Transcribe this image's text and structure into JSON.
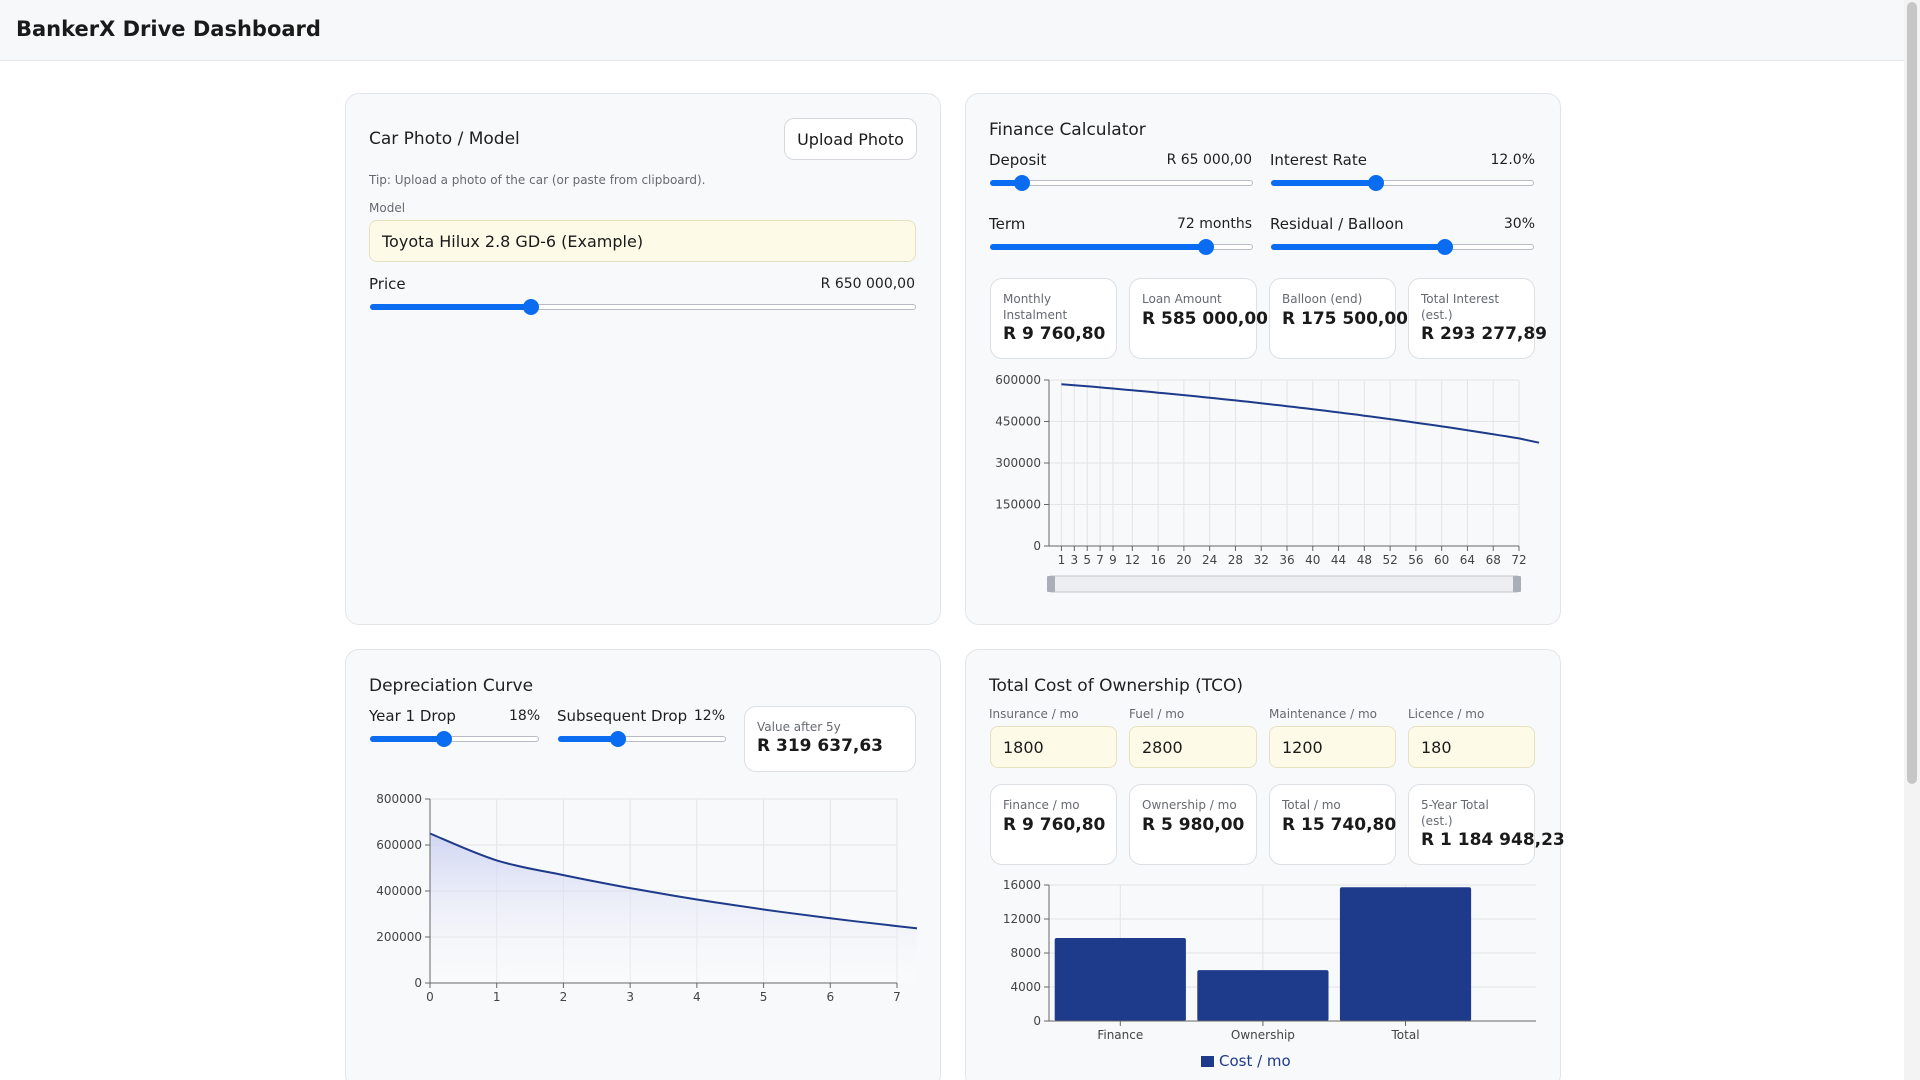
{
  "app": {
    "title": "BankerX Drive Dashboard"
  },
  "photo_card": {
    "title": "Car Photo / Model",
    "upload_label": "Upload Photo",
    "tip": "Tip: Upload a photo of the car (or paste from clipboard).",
    "model_label": "Model",
    "model_value": "Toyota Hilux 2.8 GD-6 (Example)",
    "price_label": "Price",
    "price_value": "R 650 000,00",
    "price_slider": 0.295
  },
  "finance": {
    "title": "Finance Calculator",
    "deposit_label": "Deposit",
    "deposit_value": "R 65 000,00",
    "deposit_slider": 0.12,
    "rate_label": "Interest Rate",
    "rate_value": "12.0%",
    "rate_slider": 0.4,
    "term_label": "Term",
    "term_value": "72 months",
    "term_slider": 0.82,
    "balloon_label": "Residual / Balloon",
    "balloon_value": "30%",
    "balloon_slider": 0.66,
    "stats": [
      {
        "label": "Monthly Instalment",
        "value": "R 9 760,80"
      },
      {
        "label": "Loan Amount",
        "value": "R 585 000,00"
      },
      {
        "label": "Balloon (end)",
        "value": "R 175 500,00"
      },
      {
        "label": "Total Interest (est.)",
        "value": "R 293 277,89"
      }
    ]
  },
  "depreciation": {
    "title": "Depreciation Curve",
    "year1_label": "Year 1 Drop",
    "year1_value": "18%",
    "year1_slider": 0.44,
    "subsequent_label": "Subsequent Drop",
    "subsequent_value": "12%",
    "subsequent_slider": 0.36,
    "value_after_label": "Value after 5y",
    "value_after": "R 319 637,63"
  },
  "tco": {
    "title": "Total Cost of Ownership (TCO)",
    "inputs": [
      {
        "label": "Insurance / mo",
        "value": "1800"
      },
      {
        "label": "Fuel / mo",
        "value": "2800"
      },
      {
        "label": "Maintenance / mo",
        "value": "1200"
      },
      {
        "label": "Licence / mo",
        "value": "180"
      }
    ],
    "stats": [
      {
        "label": "Finance / mo",
        "value": "R 9 760,80"
      },
      {
        "label": "Ownership / mo",
        "value": "R 5 980,00"
      },
      {
        "label": "Total / mo",
        "value": "R 15 740,80"
      },
      {
        "label": "5-Year Total (est.)",
        "value": "R 1 184 948,23"
      }
    ]
  },
  "colors": {
    "accent": "#0a6cf1",
    "line": "#1e3a8a",
    "bar": "#1e3a8a"
  },
  "chart_data": [
    {
      "type": "line",
      "name": "loan-balance",
      "title": "",
      "x": [
        1,
        2,
        3,
        4,
        5,
        6,
        7,
        8,
        9,
        10,
        11,
        12,
        13,
        14,
        15,
        16,
        17,
        18,
        19,
        20,
        21,
        22,
        23,
        24,
        25,
        26,
        27,
        28,
        29,
        30,
        31,
        32,
        33,
        34,
        35,
        36,
        37,
        38,
        39,
        40,
        41,
        42,
        43,
        44,
        45,
        46,
        47,
        48,
        49,
        50,
        51,
        52,
        53,
        54,
        55,
        56,
        57,
        58,
        59,
        60,
        61,
        62,
        63,
        64,
        65,
        66,
        67,
        68,
        69,
        70,
        71,
        72
      ],
      "y": [
        585000,
        583090,
        581161,
        579212,
        577244,
        575256,
        573248,
        571221,
        569173,
        567104,
        565016,
        562906,
        560776,
        558624,
        556451,
        554256,
        552039,
        549800,
        547539,
        545255,
        542948,
        540618,
        538265,
        535888,
        533487,
        531063,
        528614,
        526140,
        523642,
        521118,
        518569,
        515994,
        513394,
        510767,
        508114,
        505434,
        502727,
        499993,
        497232,
        494443,
        491626,
        488781,
        485907,
        483004,
        480073,
        477112,
        474121,
        471101,
        468050,
        464968,
        461856,
        458712,
        455537,
        452330,
        449091,
        445820,
        442516,
        439179,
        435808,
        432404,
        428966,
        425493,
        421986,
        418444,
        414866,
        411252,
        407602,
        403916,
        400193,
        396432,
        392634,
        388798
      ],
      "xticks": [
        "1",
        "3",
        "5",
        "7",
        "9",
        "12",
        "16",
        "20",
        "24",
        "28",
        "32",
        "36",
        "40",
        "44",
        "48",
        "52",
        "56",
        "60",
        "64",
        "68",
        "72"
      ],
      "yticks": [
        0,
        150000,
        300000,
        450000,
        600000
      ],
      "ylim": [
        0,
        600000
      ],
      "xlabel": "",
      "ylabel": ""
    },
    {
      "type": "area",
      "name": "depreciation",
      "title": "",
      "x": [
        0,
        1,
        2,
        3,
        4,
        5,
        6,
        7
      ],
      "y": [
        650000,
        533000,
        469040,
        412755,
        363225,
        319638,
        281281,
        247527
      ],
      "xticks": [
        "0",
        "1",
        "2",
        "3",
        "4",
        "5",
        "6",
        "7"
      ],
      "yticks": [
        0,
        200000,
        400000,
        600000,
        800000
      ],
      "ylim": [
        0,
        800000
      ],
      "xlabel": "",
      "ylabel": ""
    },
    {
      "type": "bar",
      "name": "tco-monthly",
      "title": "",
      "categories": [
        "Finance",
        "Ownership",
        "Total"
      ],
      "series": [
        {
          "name": "Cost / mo",
          "values": [
            9760.8,
            5980,
            15740.8
          ]
        }
      ],
      "yticks": [
        0,
        4000,
        8000,
        12000,
        16000
      ],
      "ylim": [
        0,
        16000
      ],
      "xlabel": "",
      "ylabel": ""
    }
  ]
}
